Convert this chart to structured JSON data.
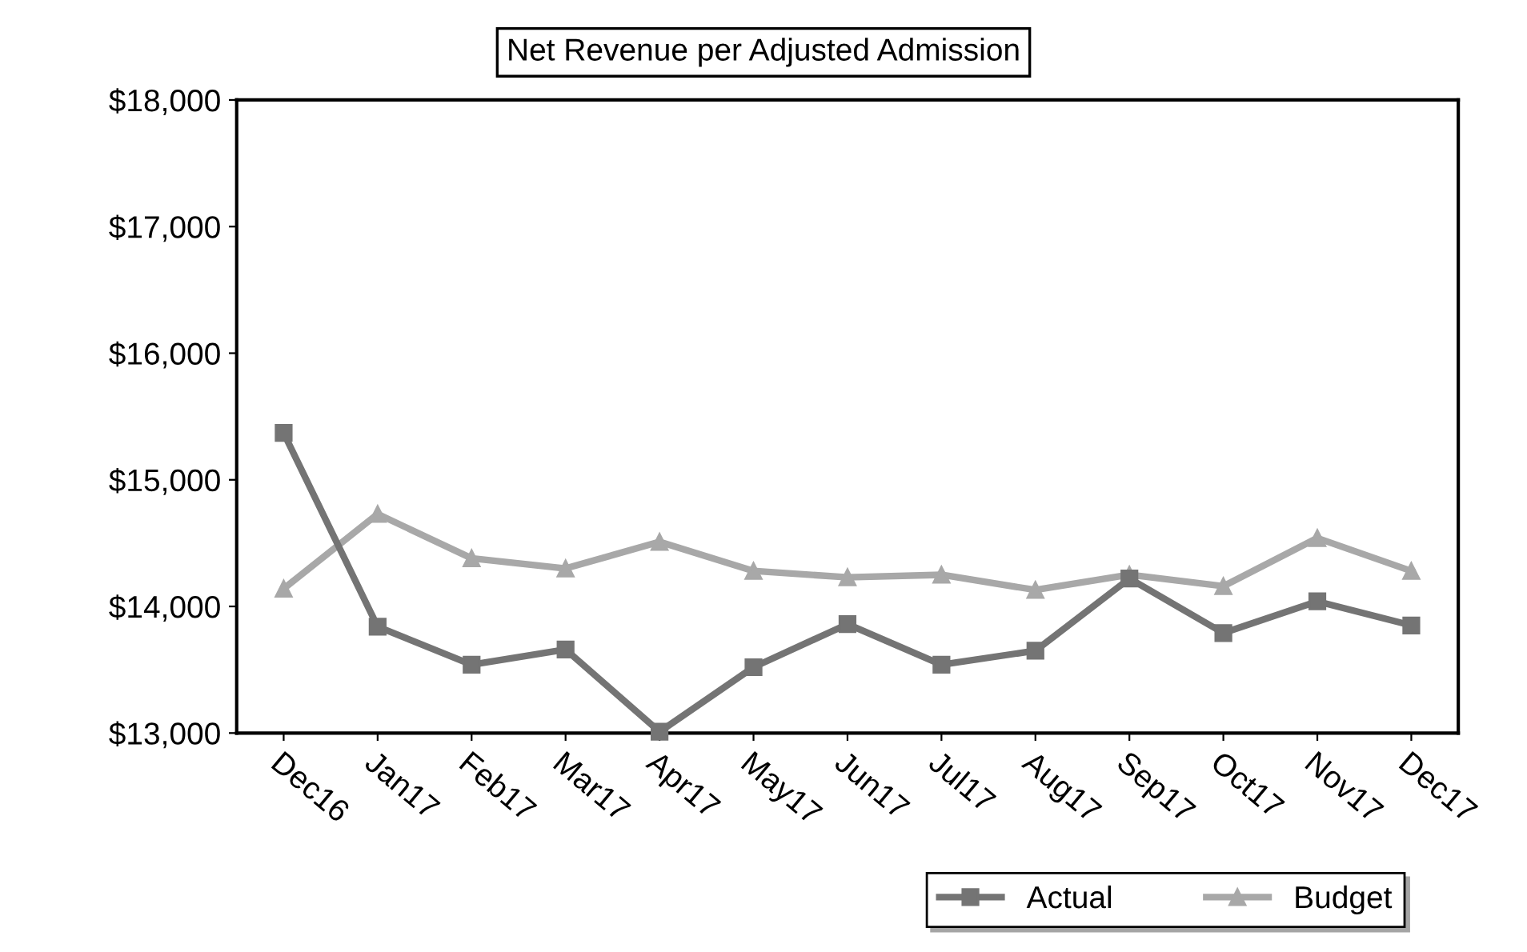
{
  "chart_data": {
    "type": "line",
    "title": "Net Revenue per Adjusted Admission",
    "categories": [
      "Dec16",
      "Jan17",
      "Feb17",
      "Mar17",
      "Apr17",
      "May17",
      "Jun17",
      "Jul17",
      "Aug17",
      "Sep17",
      "Oct17",
      "Nov17",
      "Dec17"
    ],
    "series": [
      {
        "name": "Actual",
        "color": "#747474",
        "marker": "square",
        "values": [
          15370,
          13840,
          13540,
          13660,
          13010,
          13520,
          13860,
          13540,
          13650,
          14220,
          13790,
          14040,
          13850
        ]
      },
      {
        "name": "Budget",
        "color": "#a8a8a8",
        "marker": "triangle",
        "values": [
          14140,
          14730,
          14380,
          14300,
          14510,
          14280,
          14230,
          14250,
          14130,
          14250,
          14160,
          14540,
          14280
        ]
      }
    ],
    "ylim": [
      13000,
      18000
    ],
    "yticks": [
      {
        "value": 13000,
        "label": "$13,000"
      },
      {
        "value": 14000,
        "label": "$14,000"
      },
      {
        "value": 15000,
        "label": "$15,000"
      },
      {
        "value": 16000,
        "label": "$16,000"
      },
      {
        "value": 17000,
        "label": "$17,000"
      },
      {
        "value": 18000,
        "label": "$18,000"
      }
    ],
    "grid": false,
    "legend": "bottom"
  }
}
